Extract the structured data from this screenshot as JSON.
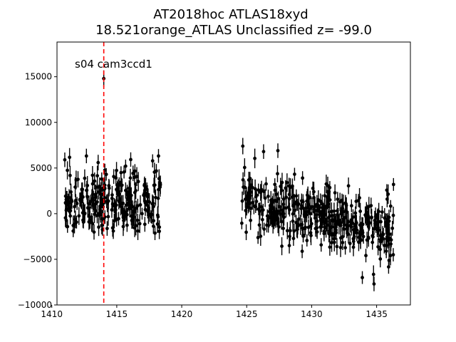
{
  "chart_data": {
    "type": "scatter",
    "title_line1": "AT2018hoc  ATLAS18xyd",
    "title_line2": "18.521orange_ATLAS Unclassified z= -99.0",
    "xlabel": "",
    "ylabel": "",
    "xlim": [
      1410.4,
      1437.6
    ],
    "ylim": [
      -10000,
      18800
    ],
    "x_ticks": [
      1410,
      1415,
      1420,
      1425,
      1430,
      1435
    ],
    "y_ticks": [
      -10000,
      -5000,
      0,
      5000,
      10000,
      15000
    ],
    "x_tick_labels": [
      "1410",
      "1415",
      "1420",
      "1425",
      "1430",
      "1435"
    ],
    "y_tick_labels": [
      "−10000",
      "−5000",
      "0",
      "5000",
      "10000",
      "15000"
    ],
    "annotation": "s04 cam3ccd1",
    "vline_x": 1414.0,
    "vline_color": "#ff0000",
    "marker_color": "#000000",
    "grid": false,
    "segments": [
      {
        "x_start": 1411.0,
        "x_end": 1418.4,
        "y_center": 1200,
        "y_spread": 3200,
        "n": 260,
        "seed": 7
      },
      {
        "x_start": 1424.6,
        "x_end": 1436.3,
        "y_center_start": 1600,
        "y_center_end": -2400,
        "y_spread": 3000,
        "n": 420,
        "seed": 13
      }
    ],
    "highlight_points": [
      {
        "x": 1414.0,
        "y": 14800,
        "yerr": 900
      },
      {
        "x": 1411.0,
        "y": 5900,
        "yerr": 800
      },
      {
        "x": 1424.7,
        "y": 7400,
        "yerr": 900
      },
      {
        "x": 1426.3,
        "y": 6800,
        "yerr": 800
      },
      {
        "x": 1427.4,
        "y": 6900,
        "yerr": 800
      },
      {
        "x": 1434.8,
        "y": -7700,
        "yerr": 800
      },
      {
        "x": 1433.9,
        "y": -7000,
        "yerr": 700
      },
      {
        "x": 1436.3,
        "y": 3200,
        "yerr": 700
      }
    ]
  }
}
